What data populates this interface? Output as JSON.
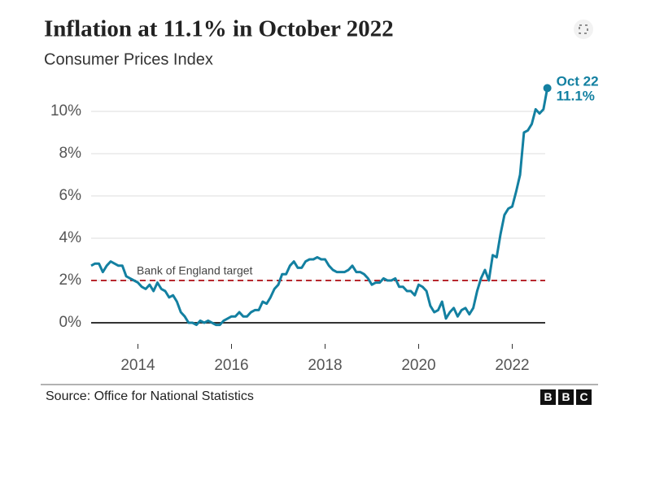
{
  "chart_data": {
    "type": "line",
    "title": "Inflation at 11.1% in October 2022",
    "subtitle": "Consumer Prices Index",
    "source": "Source: Office for National Statistics",
    "logo": [
      "B",
      "B",
      "C"
    ],
    "target_label": "Bank of England target",
    "target_value": 2,
    "end_annotation": [
      "Oct 22",
      "11.1%"
    ],
    "xlim": [
      2013,
      2022.8
    ],
    "xticks": [
      2014,
      2016,
      2018,
      2020,
      2022
    ],
    "ylim": [
      -1,
      12
    ],
    "yticks": [
      {
        "value": 0,
        "label": "0%"
      },
      {
        "value": 2,
        "label": "2%"
      },
      {
        "value": 4,
        "label": "4%"
      },
      {
        "value": 6,
        "label": "6%"
      },
      {
        "value": 8,
        "label": "8%"
      },
      {
        "value": 10,
        "label": "10%"
      }
    ],
    "grid": true,
    "series": [
      {
        "name": "CPI",
        "color": "#1380a1",
        "x": [
          2013,
          2013.083,
          2013.167,
          2013.25,
          2013.333,
          2013.417,
          2013.5,
          2013.583,
          2013.667,
          2013.75,
          2013.833,
          2013.917,
          2014,
          2014.083,
          2014.167,
          2014.25,
          2014.333,
          2014.417,
          2014.5,
          2014.583,
          2014.667,
          2014.75,
          2014.833,
          2014.917,
          2015,
          2015.083,
          2015.167,
          2015.25,
          2015.333,
          2015.417,
          2015.5,
          2015.583,
          2015.667,
          2015.75,
          2015.833,
          2015.917,
          2016,
          2016.083,
          2016.167,
          2016.25,
          2016.333,
          2016.417,
          2016.5,
          2016.583,
          2016.667,
          2016.75,
          2016.833,
          2016.917,
          2017,
          2017.083,
          2017.167,
          2017.25,
          2017.333,
          2017.417,
          2017.5,
          2017.583,
          2017.667,
          2017.75,
          2017.833,
          2017.917,
          2018,
          2018.083,
          2018.167,
          2018.25,
          2018.333,
          2018.417,
          2018.5,
          2018.583,
          2018.667,
          2018.75,
          2018.833,
          2018.917,
          2019,
          2019.083,
          2019.167,
          2019.25,
          2019.333,
          2019.417,
          2019.5,
          2019.583,
          2019.667,
          2019.75,
          2019.833,
          2019.917,
          2020,
          2020.083,
          2020.167,
          2020.25,
          2020.333,
          2020.417,
          2020.5,
          2020.583,
          2020.667,
          2020.75,
          2020.833,
          2020.917,
          2021,
          2021.083,
          2021.167,
          2021.25,
          2021.333,
          2021.417,
          2021.5,
          2021.583,
          2021.667,
          2021.75,
          2021.833,
          2021.917,
          2022,
          2022.083,
          2022.167,
          2022.25,
          2022.333,
          2022.417,
          2022.5,
          2022.583,
          2022.667,
          2022.75
        ],
        "values": [
          2.7,
          2.8,
          2.8,
          2.4,
          2.7,
          2.9,
          2.8,
          2.7,
          2.7,
          2.2,
          2.1,
          2.0,
          1.9,
          1.7,
          1.6,
          1.8,
          1.5,
          1.9,
          1.6,
          1.5,
          1.2,
          1.3,
          1.0,
          0.5,
          0.3,
          0.0,
          0.0,
          -0.1,
          0.1,
          0.0,
          0.1,
          0.0,
          -0.1,
          -0.1,
          0.1,
          0.2,
          0.3,
          0.3,
          0.5,
          0.3,
          0.3,
          0.5,
          0.6,
          0.6,
          1.0,
          0.9,
          1.2,
          1.6,
          1.8,
          2.3,
          2.3,
          2.7,
          2.9,
          2.6,
          2.6,
          2.9,
          3.0,
          3.0,
          3.1,
          3.0,
          3.0,
          2.7,
          2.5,
          2.4,
          2.4,
          2.4,
          2.5,
          2.7,
          2.4,
          2.4,
          2.3,
          2.1,
          1.8,
          1.9,
          1.9,
          2.1,
          2.0,
          2.0,
          2.1,
          1.7,
          1.7,
          1.5,
          1.5,
          1.3,
          1.8,
          1.7,
          1.5,
          0.8,
          0.5,
          0.6,
          1.0,
          0.2,
          0.5,
          0.7,
          0.3,
          0.6,
          0.7,
          0.4,
          0.7,
          1.5,
          2.1,
          2.5,
          2.0,
          3.2,
          3.1,
          4.2,
          5.1,
          5.4,
          5.5,
          6.2,
          7.0,
          9.0,
          9.1,
          9.4,
          10.1,
          9.9,
          10.1,
          11.1
        ]
      }
    ]
  }
}
